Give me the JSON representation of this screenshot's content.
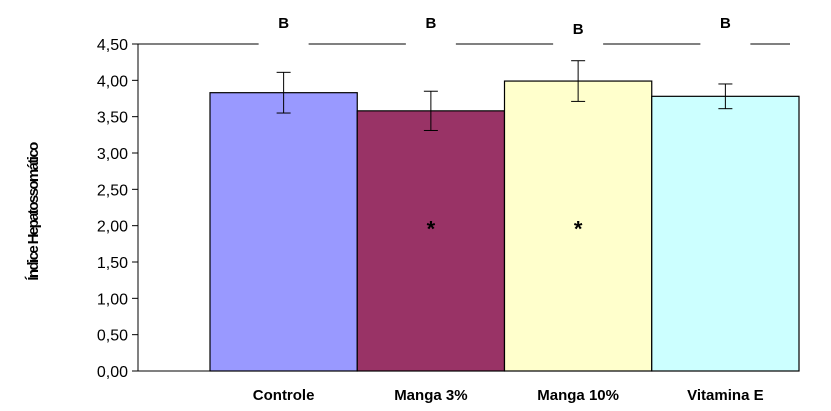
{
  "chart_data": {
    "type": "bar",
    "title": "",
    "xlabel": "",
    "ylabel": "Índice Hepatossomático",
    "categories": [
      "Controle",
      "Manga 3%",
      "Manga 10%",
      "Vitamina E"
    ],
    "values": [
      3.83,
      3.58,
      3.99,
      3.78
    ],
    "errors": [
      0.28,
      0.27,
      0.28,
      0.17
    ],
    "colors": [
      "#9999FF",
      "#993366",
      "#FFFFCC",
      "#CCFFFF"
    ],
    "ylim": [
      0,
      4.5
    ],
    "yticks": [
      "0,00",
      "0,50",
      "1,00",
      "1,50",
      "2,00",
      "2,50",
      "3,00",
      "3,50",
      "4,00",
      "4,50"
    ],
    "ytick_values": [
      0,
      0.5,
      1,
      1.5,
      2,
      2.5,
      3,
      3.5,
      4,
      4.5
    ],
    "significance_letters": [
      "B",
      "B",
      "B",
      "B"
    ],
    "annotations": [
      {
        "category": "Manga 3%",
        "text": "*",
        "y": 2.0
      },
      {
        "category": "Manga 10%",
        "text": "*",
        "y": 2.0
      }
    ],
    "grid": false,
    "legend": "none"
  }
}
